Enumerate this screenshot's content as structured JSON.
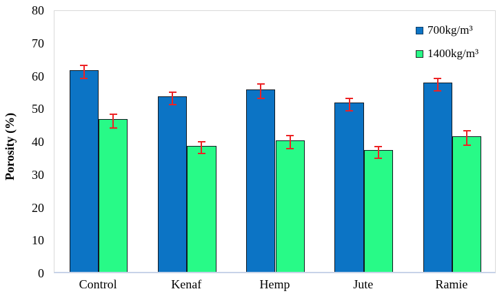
{
  "chart_data": {
    "type": "bar",
    "title": "",
    "xlabel": "",
    "ylabel": "Porosity (%)",
    "ylim": [
      0,
      80
    ],
    "yticks": [
      0,
      10,
      20,
      30,
      40,
      50,
      60,
      70,
      80
    ],
    "grid": false,
    "legend_position": "top-right-inside",
    "categories": [
      "Control",
      "Kenaf",
      "Hemp",
      "Jute",
      "Ramie"
    ],
    "series": [
      {
        "name": "700kg/m³",
        "color": "#0C74C5",
        "marker_border": "#123E66",
        "values": [
          61.4,
          53.4,
          55.6,
          51.5,
          57.6
        ],
        "errors": [
          2.0,
          1.8,
          2.2,
          1.8,
          1.8
        ]
      },
      {
        "name": "1400kg/m³",
        "color": "#28FA87",
        "marker_border": "#262626",
        "values": [
          46.5,
          38.4,
          40.1,
          37.0,
          41.3
        ],
        "errors": [
          2.1,
          1.8,
          1.9,
          1.8,
          2.2
        ]
      }
    ],
    "error_bar_color": "#ED2224",
    "bar_border_color": "#101820",
    "plot_border_color": "#D9D9D9",
    "axis_line_color": "#C7D3E8",
    "background_color": "#FFFFFF"
  }
}
